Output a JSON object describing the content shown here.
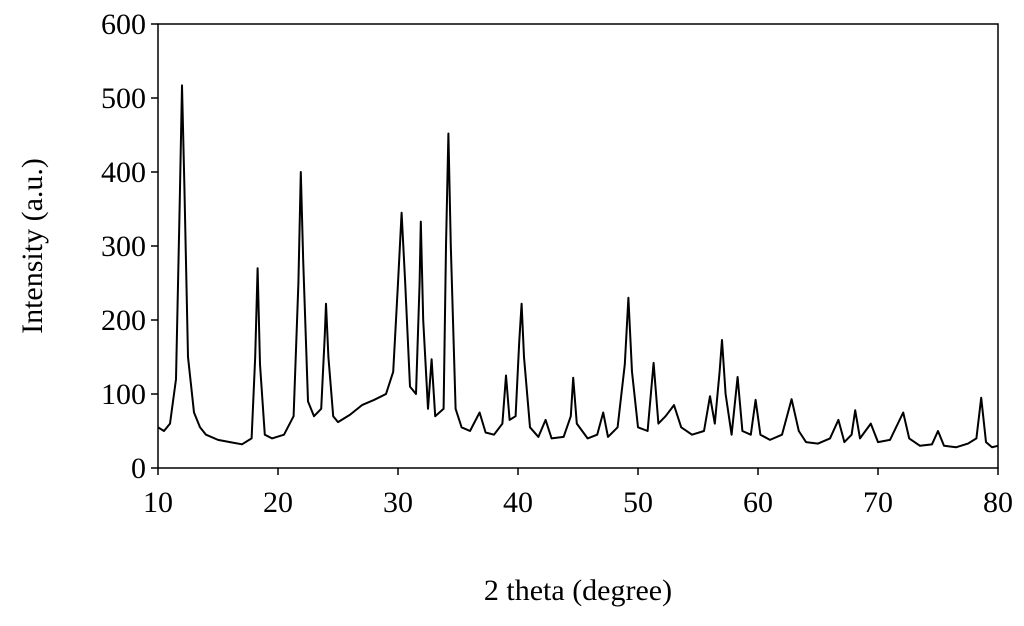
{
  "chart_data": {
    "type": "line",
    "x_label": "2 theta (degree)",
    "y_label": "Intensity (a.u.)",
    "xlim": [
      10,
      80
    ],
    "xticks": [
      10,
      20,
      30,
      40,
      50,
      60,
      70,
      80
    ],
    "ylim": [
      0,
      600
    ],
    "yticks": [
      0,
      100,
      200,
      300,
      400,
      500,
      600
    ],
    "grid": false,
    "series": [
      {
        "color": "#000000",
        "x": [
          10,
          10.5,
          11,
          11.5,
          11.8,
          12.0,
          12.2,
          12.5,
          13,
          13.5,
          14,
          15,
          16,
          17,
          17.8,
          18.1,
          18.3,
          18.5,
          18.9,
          19.5,
          20.5,
          21.3,
          21.7,
          21.9,
          22.1,
          22.5,
          23.0,
          23.6,
          23.9,
          24.0,
          24.2,
          24.6,
          25,
          26,
          27,
          28,
          29,
          29.6,
          30.0,
          30.3,
          30.6,
          31.0,
          31.5,
          31.8,
          31.9,
          32.1,
          32.5,
          32.8,
          33.1,
          33.8,
          34.0,
          34.2,
          34.4,
          34.8,
          35.3,
          36,
          36.8,
          37.3,
          38,
          38.7,
          39.0,
          39.3,
          39.8,
          40.1,
          40.3,
          40.5,
          41,
          41.7,
          42.3,
          42.8,
          43.8,
          44.4,
          44.6,
          44.9,
          45.8,
          46.6,
          47.1,
          47.5,
          48.3,
          48.9,
          49.2,
          49.5,
          50,
          50.8,
          51.3,
          51.7,
          52.3,
          53.0,
          53.6,
          54.5,
          55.5,
          56.0,
          56.4,
          56.8,
          57.0,
          57.3,
          57.8,
          58.3,
          58.7,
          59.4,
          59.8,
          60.2,
          61,
          62,
          62.8,
          63.4,
          64,
          65,
          66,
          66.7,
          67.2,
          67.8,
          68.1,
          68.5,
          69.4,
          70,
          71,
          72.1,
          72.6,
          73.5,
          74.5,
          75.0,
          75.5,
          76.5,
          77.5,
          78.2,
          78.6,
          79.0,
          79.5,
          80
        ],
        "values": [
          55,
          50,
          60,
          120,
          350,
          517,
          380,
          150,
          75,
          55,
          45,
          38,
          35,
          32,
          40,
          150,
          270,
          140,
          45,
          40,
          45,
          70,
          250,
          400,
          280,
          90,
          70,
          80,
          180,
          222,
          150,
          70,
          62,
          72,
          85,
          92,
          100,
          130,
          250,
          345,
          250,
          110,
          100,
          250,
          333,
          200,
          80,
          147,
          70,
          80,
          300,
          452,
          300,
          80,
          55,
          50,
          75,
          48,
          45,
          60,
          125,
          65,
          70,
          170,
          222,
          150,
          55,
          42,
          65,
          40,
          42,
          70,
          122,
          60,
          40,
          45,
          75,
          42,
          55,
          140,
          230,
          130,
          55,
          50,
          142,
          60,
          70,
          85,
          55,
          45,
          50,
          97,
          60,
          130,
          173,
          100,
          45,
          123,
          50,
          45,
          92,
          45,
          38,
          45,
          93,
          50,
          35,
          33,
          40,
          65,
          35,
          45,
          78,
          40,
          60,
          35,
          38,
          75,
          40,
          30,
          32,
          50,
          30,
          28,
          33,
          40,
          95,
          35,
          28,
          30
        ]
      }
    ]
  }
}
